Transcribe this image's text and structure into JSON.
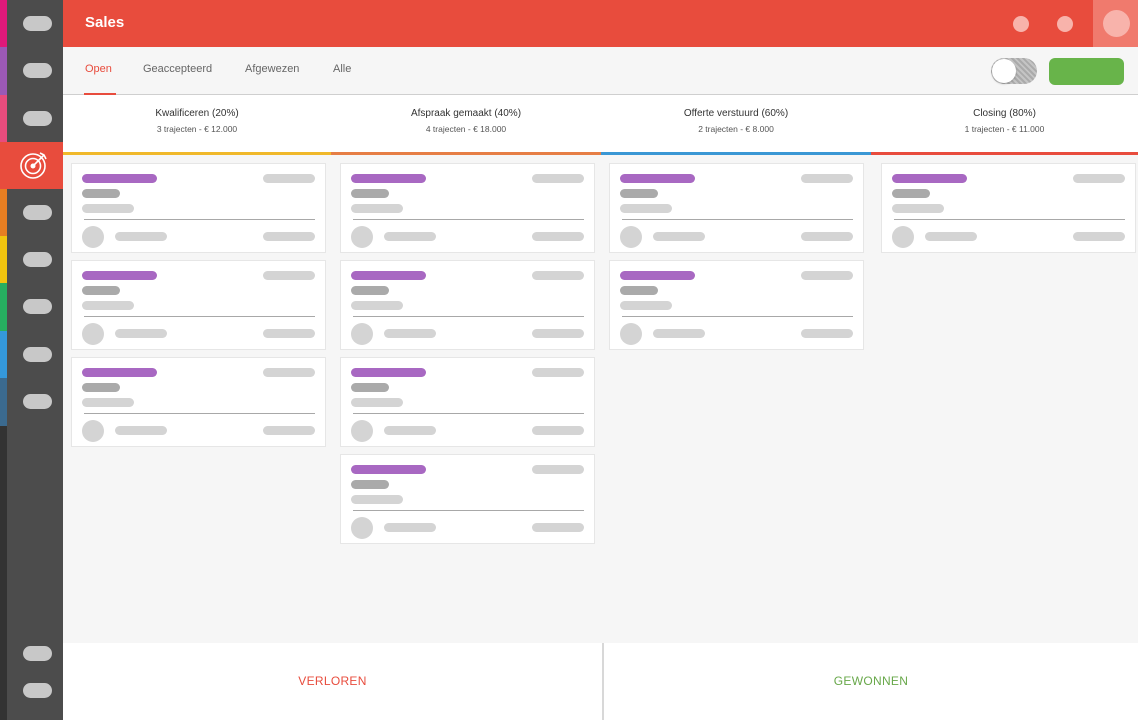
{
  "header": {
    "title": "Sales"
  },
  "tabs": [
    {
      "label": "Open",
      "active": true
    },
    {
      "label": "Geaccepteerd",
      "active": false
    },
    {
      "label": "Afgewezen",
      "active": false
    },
    {
      "label": "Alle",
      "active": false
    }
  ],
  "sidebar": {
    "stripe_colors": [
      "#e0197a",
      "#9b59b6",
      "#e84c7d",
      "#e84c3d",
      "#e67e22",
      "#f1c40f",
      "#27ae60",
      "#3498db",
      "#3b6a8f"
    ],
    "active_icon": "target-icon"
  },
  "stages": [
    {
      "title": "Kwalificeren (20%)",
      "subtitle": "3 trajecten - € 12.000",
      "color": "#f0b82a",
      "card_count": 3
    },
    {
      "title": "Afspraak gemaakt (40%)",
      "subtitle": "4 trajecten - € 18.000",
      "color": "#e67e45",
      "card_count": 4
    },
    {
      "title": "Offerte verstuurd (60%)",
      "subtitle": "2 trajecten - € 8.000",
      "color": "#3a97d4",
      "card_count": 2
    },
    {
      "title": "Closing (80%)",
      "subtitle": "1 trajecten - € 11.000",
      "color": "#e84c3d",
      "card_count": 1
    }
  ],
  "dropzones": {
    "lost": "VERLOREN",
    "won": "GEWONNEN"
  },
  "colors": {
    "accent": "#e84c3d",
    "success": "#68b44a",
    "placeholder_purple": "#a868c2"
  }
}
